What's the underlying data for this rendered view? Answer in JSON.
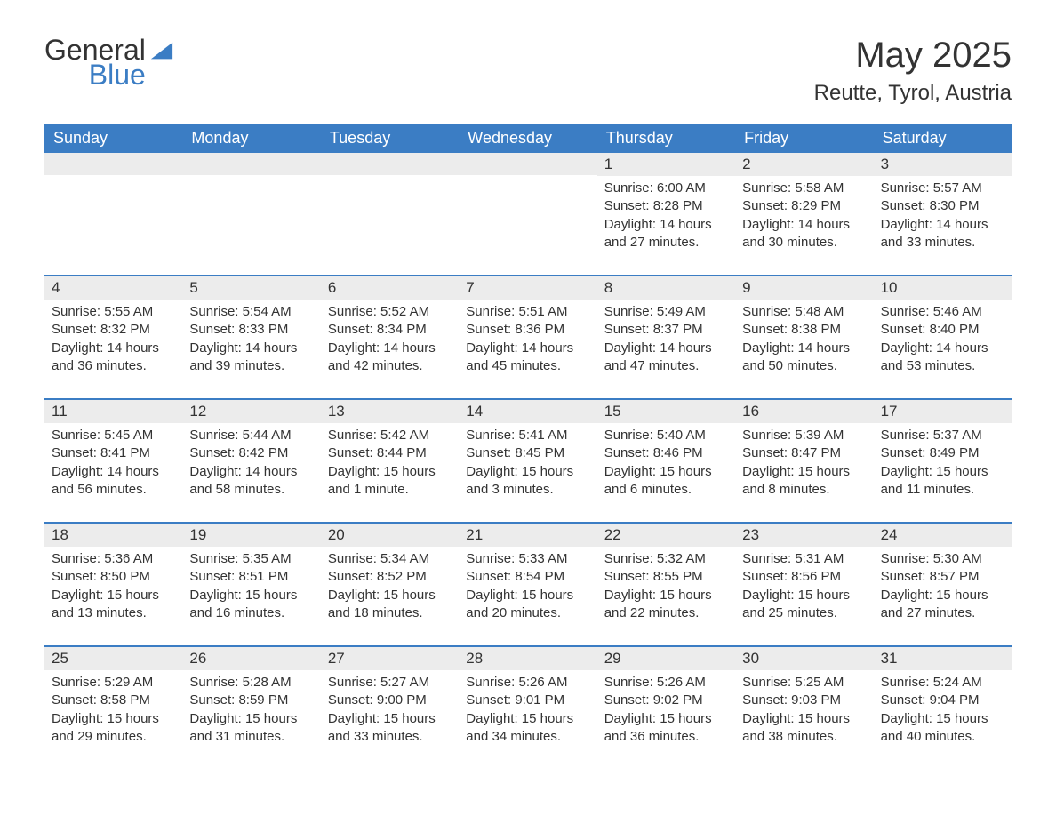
{
  "logo": {
    "line1": "General",
    "line2": "Blue"
  },
  "title": "May 2025",
  "location": "Reutte, Tyrol, Austria",
  "colors": {
    "header_bg": "#3b7dc4",
    "header_text": "#ffffff",
    "daynum_bg": "#ececec",
    "text": "#333333",
    "border": "#3b7dc4",
    "background": "#ffffff"
  },
  "day_names": [
    "Sunday",
    "Monday",
    "Tuesday",
    "Wednesday",
    "Thursday",
    "Friday",
    "Saturday"
  ],
  "labels": {
    "sunrise": "Sunrise:",
    "sunset": "Sunset:",
    "daylight": "Daylight:"
  },
  "weeks": [
    [
      null,
      null,
      null,
      null,
      {
        "n": "1",
        "sunrise": "6:00 AM",
        "sunset": "8:28 PM",
        "daylight": "14 hours and 27 minutes."
      },
      {
        "n": "2",
        "sunrise": "5:58 AM",
        "sunset": "8:29 PM",
        "daylight": "14 hours and 30 minutes."
      },
      {
        "n": "3",
        "sunrise": "5:57 AM",
        "sunset": "8:30 PM",
        "daylight": "14 hours and 33 minutes."
      }
    ],
    [
      {
        "n": "4",
        "sunrise": "5:55 AM",
        "sunset": "8:32 PM",
        "daylight": "14 hours and 36 minutes."
      },
      {
        "n": "5",
        "sunrise": "5:54 AM",
        "sunset": "8:33 PM",
        "daylight": "14 hours and 39 minutes."
      },
      {
        "n": "6",
        "sunrise": "5:52 AM",
        "sunset": "8:34 PM",
        "daylight": "14 hours and 42 minutes."
      },
      {
        "n": "7",
        "sunrise": "5:51 AM",
        "sunset": "8:36 PM",
        "daylight": "14 hours and 45 minutes."
      },
      {
        "n": "8",
        "sunrise": "5:49 AM",
        "sunset": "8:37 PM",
        "daylight": "14 hours and 47 minutes."
      },
      {
        "n": "9",
        "sunrise": "5:48 AM",
        "sunset": "8:38 PM",
        "daylight": "14 hours and 50 minutes."
      },
      {
        "n": "10",
        "sunrise": "5:46 AM",
        "sunset": "8:40 PM",
        "daylight": "14 hours and 53 minutes."
      }
    ],
    [
      {
        "n": "11",
        "sunrise": "5:45 AM",
        "sunset": "8:41 PM",
        "daylight": "14 hours and 56 minutes."
      },
      {
        "n": "12",
        "sunrise": "5:44 AM",
        "sunset": "8:42 PM",
        "daylight": "14 hours and 58 minutes."
      },
      {
        "n": "13",
        "sunrise": "5:42 AM",
        "sunset": "8:44 PM",
        "daylight": "15 hours and 1 minute."
      },
      {
        "n": "14",
        "sunrise": "5:41 AM",
        "sunset": "8:45 PM",
        "daylight": "15 hours and 3 minutes."
      },
      {
        "n": "15",
        "sunrise": "5:40 AM",
        "sunset": "8:46 PM",
        "daylight": "15 hours and 6 minutes."
      },
      {
        "n": "16",
        "sunrise": "5:39 AM",
        "sunset": "8:47 PM",
        "daylight": "15 hours and 8 minutes."
      },
      {
        "n": "17",
        "sunrise": "5:37 AM",
        "sunset": "8:49 PM",
        "daylight": "15 hours and 11 minutes."
      }
    ],
    [
      {
        "n": "18",
        "sunrise": "5:36 AM",
        "sunset": "8:50 PM",
        "daylight": "15 hours and 13 minutes."
      },
      {
        "n": "19",
        "sunrise": "5:35 AM",
        "sunset": "8:51 PM",
        "daylight": "15 hours and 16 minutes."
      },
      {
        "n": "20",
        "sunrise": "5:34 AM",
        "sunset": "8:52 PM",
        "daylight": "15 hours and 18 minutes."
      },
      {
        "n": "21",
        "sunrise": "5:33 AM",
        "sunset": "8:54 PM",
        "daylight": "15 hours and 20 minutes."
      },
      {
        "n": "22",
        "sunrise": "5:32 AM",
        "sunset": "8:55 PM",
        "daylight": "15 hours and 22 minutes."
      },
      {
        "n": "23",
        "sunrise": "5:31 AM",
        "sunset": "8:56 PM",
        "daylight": "15 hours and 25 minutes."
      },
      {
        "n": "24",
        "sunrise": "5:30 AM",
        "sunset": "8:57 PM",
        "daylight": "15 hours and 27 minutes."
      }
    ],
    [
      {
        "n": "25",
        "sunrise": "5:29 AM",
        "sunset": "8:58 PM",
        "daylight": "15 hours and 29 minutes."
      },
      {
        "n": "26",
        "sunrise": "5:28 AM",
        "sunset": "8:59 PM",
        "daylight": "15 hours and 31 minutes."
      },
      {
        "n": "27",
        "sunrise": "5:27 AM",
        "sunset": "9:00 PM",
        "daylight": "15 hours and 33 minutes."
      },
      {
        "n": "28",
        "sunrise": "5:26 AM",
        "sunset": "9:01 PM",
        "daylight": "15 hours and 34 minutes."
      },
      {
        "n": "29",
        "sunrise": "5:26 AM",
        "sunset": "9:02 PM",
        "daylight": "15 hours and 36 minutes."
      },
      {
        "n": "30",
        "sunrise": "5:25 AM",
        "sunset": "9:03 PM",
        "daylight": "15 hours and 38 minutes."
      },
      {
        "n": "31",
        "sunrise": "5:24 AM",
        "sunset": "9:04 PM",
        "daylight": "15 hours and 40 minutes."
      }
    ]
  ]
}
